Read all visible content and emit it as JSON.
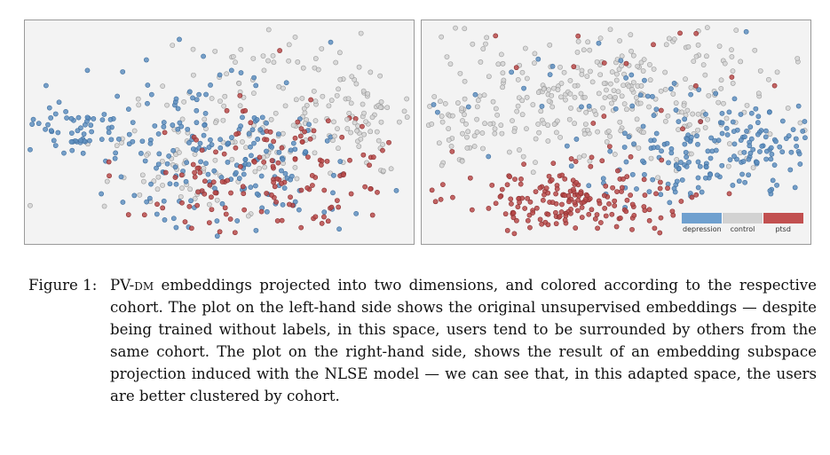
{
  "figure": {
    "label": "Figure 1:",
    "caption_prefix": "PV-",
    "caption_model": "dm",
    "caption_rest": " embeddings projected into two dimensions, and colored according to the respective cohort. The plot on the left-hand side shows the original unsupervised embeddings — despite being trained without labels, in this space, users tend to be surrounded by others from the same cohort. The plot on the right-hand side, shows the result of an embedding subspace projection induced with the NLSE model — we can see that, in this adapted space, the users are better clustered by cohort."
  },
  "colors": {
    "depression": "#5f8fbf",
    "control": "#d4d4d4",
    "ptsd": "#b84a4a",
    "panel_background": "#f3f3f3"
  },
  "legend": {
    "items": [
      {
        "label": "depression",
        "color": "#6fa0cf"
      },
      {
        "label": "control",
        "color": "#d2d2d2"
      },
      {
        "label": "ptsd",
        "color": "#c25050"
      }
    ]
  },
  "chart_data": [
    {
      "type": "scatter",
      "title": "",
      "description_series": [
        "depression",
        "control",
        "ptsd"
      ],
      "x": [],
      "y": [],
      "legend": "none"
    },
    {
      "type": "scatter",
      "title": "",
      "description_series": [
        "depression",
        "control",
        "ptsd"
      ],
      "x": [],
      "y": [],
      "legend": "bottom-right"
    }
  ]
}
